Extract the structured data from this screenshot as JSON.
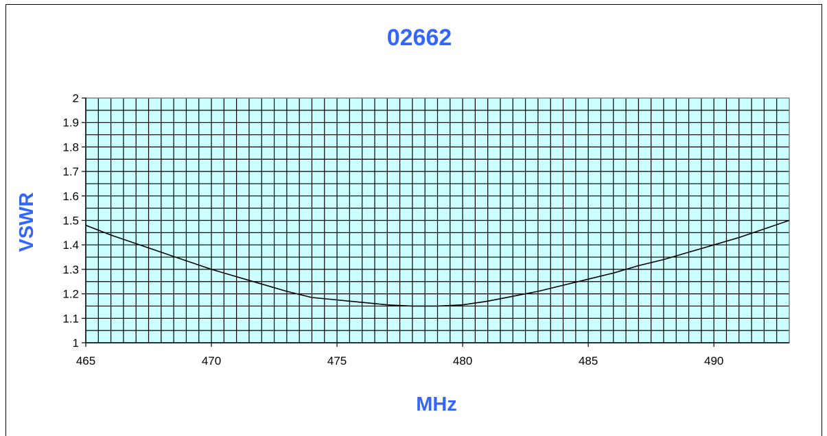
{
  "chart_data": {
    "type": "line",
    "title": "02662",
    "xlabel": "MHz",
    "ylabel": "VSWR",
    "xlim": [
      465,
      493
    ],
    "ylim": [
      1,
      2
    ],
    "x_ticks": [
      465,
      470,
      475,
      480,
      485,
      490
    ],
    "y_ticks": [
      "1",
      "1.1",
      "1.2",
      "1.3",
      "1.4",
      "1.5",
      "1.6",
      "1.7",
      "1.8",
      "1.9",
      "2"
    ],
    "grid": true,
    "legend": false,
    "plot_background": "#ccffff",
    "line_color": "#000000",
    "series": [
      {
        "x": [
          465,
          466,
          467,
          468,
          469,
          470,
          471,
          472,
          473,
          474,
          475,
          476,
          477,
          478,
          479,
          480,
          481,
          482,
          483,
          484,
          485,
          486,
          487,
          488,
          489,
          490,
          491,
          492,
          493
        ],
        "values": [
          1.48,
          1.44,
          1.405,
          1.37,
          1.335,
          1.3,
          1.27,
          1.24,
          1.21,
          1.185,
          1.175,
          1.165,
          1.155,
          1.15,
          1.15,
          1.155,
          1.17,
          1.19,
          1.21,
          1.235,
          1.26,
          1.285,
          1.315,
          1.34,
          1.37,
          1.4,
          1.43,
          1.465,
          1.5
        ]
      }
    ]
  }
}
